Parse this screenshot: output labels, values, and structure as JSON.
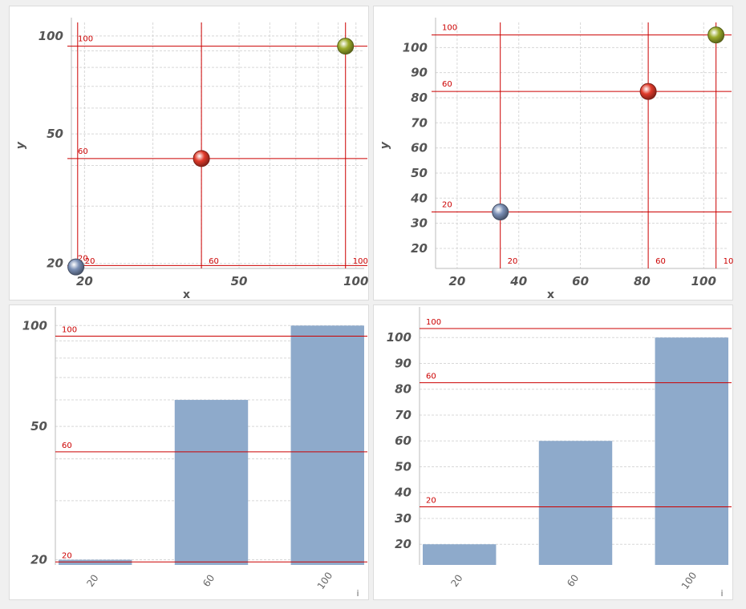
{
  "chart_data": [
    {
      "id": "p1",
      "type": "scatter",
      "xlabel": "x",
      "ylabel": "y",
      "scale": "log",
      "xlim": [
        18.5,
        105
      ],
      "ylim": [
        19.3,
        110
      ],
      "xticks": [
        20,
        50,
        100
      ],
      "yticks": [
        20,
        50,
        100
      ],
      "minor_grid": [
        30,
        40,
        60,
        70,
        80,
        90
      ],
      "points": [
        {
          "x": 19,
          "y": 19.5,
          "color": "#7a8fb5"
        },
        {
          "x": 40,
          "y": 42,
          "color": "#e03a2a"
        },
        {
          "x": 94,
          "y": 93,
          "color": "#9aaa2a"
        }
      ],
      "ref_lines_x": [
        {
          "value": 19.2,
          "label": "20"
        },
        {
          "value": 40,
          "label": "60"
        },
        {
          "value": 94,
          "label": "100"
        }
      ],
      "ref_lines_y": [
        {
          "value": 19.7,
          "label": "20"
        },
        {
          "value": 42,
          "label": "60"
        },
        {
          "value": 93,
          "label": "100"
        }
      ]
    },
    {
      "id": "p2",
      "type": "scatter",
      "xlabel": "x",
      "ylabel": "y",
      "scale": "linear",
      "xlim": [
        13,
        108
      ],
      "ylim": [
        12,
        110
      ],
      "xticks": [
        20,
        40,
        60,
        80,
        100
      ],
      "yticks": [
        20,
        30,
        40,
        50,
        60,
        70,
        80,
        90,
        100
      ],
      "points": [
        {
          "x": 34,
          "y": 34.5,
          "color": "#7a8fb5"
        },
        {
          "x": 82,
          "y": 82.5,
          "color": "#e03a2a"
        },
        {
          "x": 104,
          "y": 105,
          "color": "#9aaa2a"
        }
      ],
      "ref_lines_x": [
        {
          "value": 34,
          "label": "20"
        },
        {
          "value": 82,
          "label": "60"
        },
        {
          "value": 104,
          "label": "100"
        }
      ],
      "ref_lines_y": [
        {
          "value": 34.5,
          "label": "20"
        },
        {
          "value": 82.5,
          "label": "60"
        },
        {
          "value": 105,
          "label": "100"
        }
      ]
    },
    {
      "id": "p3",
      "type": "bar",
      "xlabel": "i",
      "scale": "log",
      "ylim": [
        19.3,
        110
      ],
      "yticks": [
        20,
        50,
        100
      ],
      "minor_grid": [
        30,
        40,
        60,
        70,
        80,
        90
      ],
      "categories": [
        "20",
        "60",
        "100"
      ],
      "values": [
        20,
        60,
        100
      ],
      "bar_color": "#8eaacb",
      "ref_lines_y": [
        {
          "value": 19.7,
          "label": "20"
        },
        {
          "value": 42,
          "label": "60"
        },
        {
          "value": 93,
          "label": "100"
        }
      ]
    },
    {
      "id": "p4",
      "type": "bar",
      "xlabel": "i",
      "scale": "linear",
      "ylim": [
        12,
        110
      ],
      "yticks": [
        20,
        30,
        40,
        50,
        60,
        70,
        80,
        90,
        100
      ],
      "categories": [
        "20",
        "60",
        "100"
      ],
      "values": [
        20,
        60,
        100
      ],
      "bar_color": "#8eaacb",
      "ref_lines_y": [
        {
          "value": 34.5,
          "label": "20"
        },
        {
          "value": 82.5,
          "label": "60"
        },
        {
          "value": 103.5,
          "label": "100"
        }
      ]
    }
  ],
  "colors": {
    "ref_line": "#cc0000",
    "grid": "#d8d8d8"
  }
}
